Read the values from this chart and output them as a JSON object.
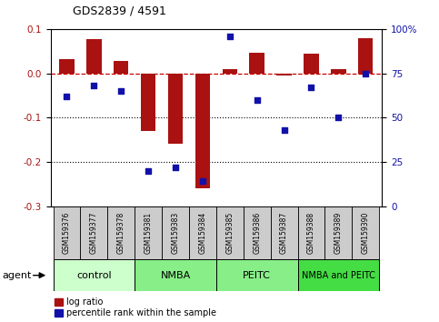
{
  "title": "GDS2839 / 4591",
  "samples": [
    "GSM159376",
    "GSM159377",
    "GSM159378",
    "GSM159381",
    "GSM159383",
    "GSM159384",
    "GSM159385",
    "GSM159386",
    "GSM159387",
    "GSM159388",
    "GSM159389",
    "GSM159390"
  ],
  "log_ratio": [
    0.032,
    0.078,
    0.028,
    -0.13,
    -0.16,
    -0.26,
    0.01,
    0.047,
    -0.005,
    0.045,
    0.01,
    0.08
  ],
  "percentile_rank": [
    62,
    68,
    65,
    20,
    22,
    14,
    96,
    60,
    43,
    67,
    50,
    75
  ],
  "bar_color": "#aa1111",
  "dot_color": "#1111aa",
  "ylim_left": [
    -0.3,
    0.1
  ],
  "ylim_right": [
    0,
    100
  ],
  "yticks_left": [
    -0.3,
    -0.2,
    -0.1,
    0.0,
    0.1
  ],
  "yticks_right": [
    0,
    25,
    50,
    75,
    100
  ],
  "groups": [
    {
      "label": "control",
      "start": 0,
      "end": 3,
      "color": "#ccffcc"
    },
    {
      "label": "NMBA",
      "start": 3,
      "end": 6,
      "color": "#88ee88"
    },
    {
      "label": "PEITC",
      "start": 6,
      "end": 9,
      "color": "#88ee88"
    },
    {
      "label": "NMBA and PEITC",
      "start": 9,
      "end": 12,
      "color": "#44dd44"
    }
  ],
  "sample_box_color": "#cccccc",
  "agent_label": "agent",
  "legend_bar_label": "log ratio",
  "legend_dot_label": "percentile rank within the sample",
  "hline_color": "#cc0000",
  "background_color": "#ffffff"
}
